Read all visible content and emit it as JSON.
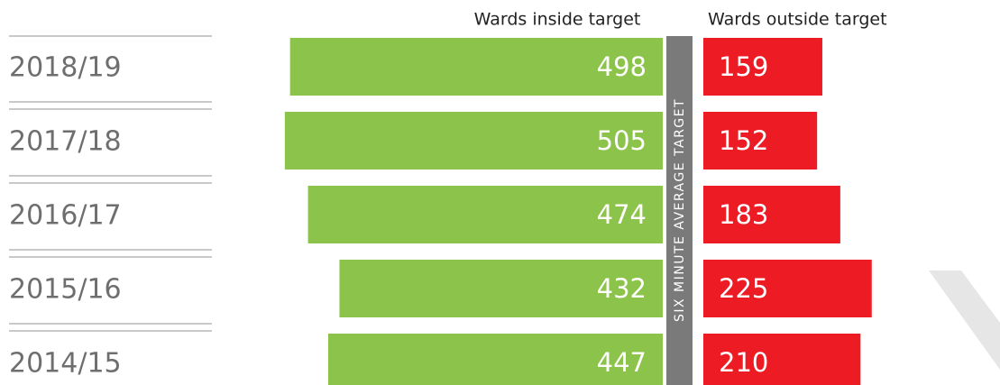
{
  "chart_data": {
    "type": "bar",
    "categories": [
      "2018/19",
      "2017/18",
      "2016/17",
      "2015/16",
      "2014/15"
    ],
    "target_label": "SIX MINUTE AVERAGE TARGET",
    "series": [
      {
        "name": "Wards inside target",
        "color": "#8cc34a",
        "values": [
          498,
          505,
          474,
          432,
          447
        ]
      },
      {
        "name": "Wards outside target",
        "color": "#ed1c24",
        "values": [
          159,
          152,
          183,
          225,
          210
        ]
      }
    ]
  }
}
